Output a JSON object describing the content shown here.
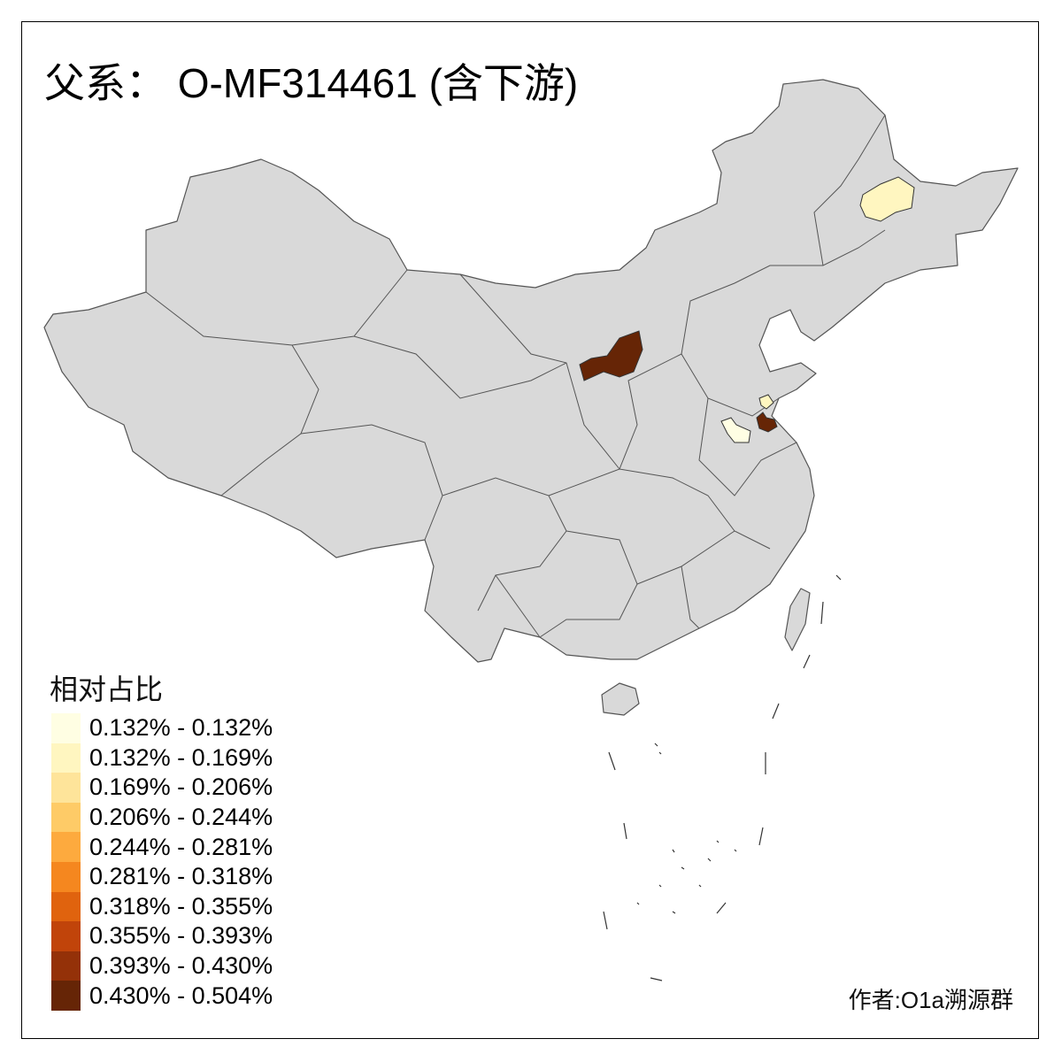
{
  "title": "父系： O-MF314461 (含下游)",
  "legend": {
    "title": "相对占比",
    "items": [
      {
        "label": "0.132% - 0.132%",
        "color": "#FFFEE3"
      },
      {
        "label": "0.132% - 0.169%",
        "color": "#FFF6C0"
      },
      {
        "label": "0.169% - 0.206%",
        "color": "#FEE49A"
      },
      {
        "label": "0.206% - 0.244%",
        "color": "#FECB67"
      },
      {
        "label": "0.244% - 0.281%",
        "color": "#FDAA3E"
      },
      {
        "label": "0.281% - 0.318%",
        "color": "#F5871F"
      },
      {
        "label": "0.318% - 0.355%",
        "color": "#E0630E"
      },
      {
        "label": "0.355% - 0.393%",
        "color": "#C1440A"
      },
      {
        "label": "0.393% - 0.430%",
        "color": "#943108"
      },
      {
        "label": "0.430% - 0.504%",
        "color": "#662506"
      }
    ]
  },
  "map": {
    "base_color": "#D9D9D9",
    "border_color": "#555555",
    "highlighted_regions": [
      {
        "area": "northern Shaanxi / western Shanxi",
        "color": "#662506"
      },
      {
        "area": "central Heilongjiang",
        "color": "#FFF6C0"
      },
      {
        "area": "northern Jiangsu coast",
        "color": "#662506"
      },
      {
        "area": "northern Jiangsu",
        "color": "#FFF6C0"
      },
      {
        "area": "northwest Jiangsu / Anhui border",
        "color": "#FFFEE3"
      }
    ]
  },
  "credit": "作者:O1a溯源群"
}
